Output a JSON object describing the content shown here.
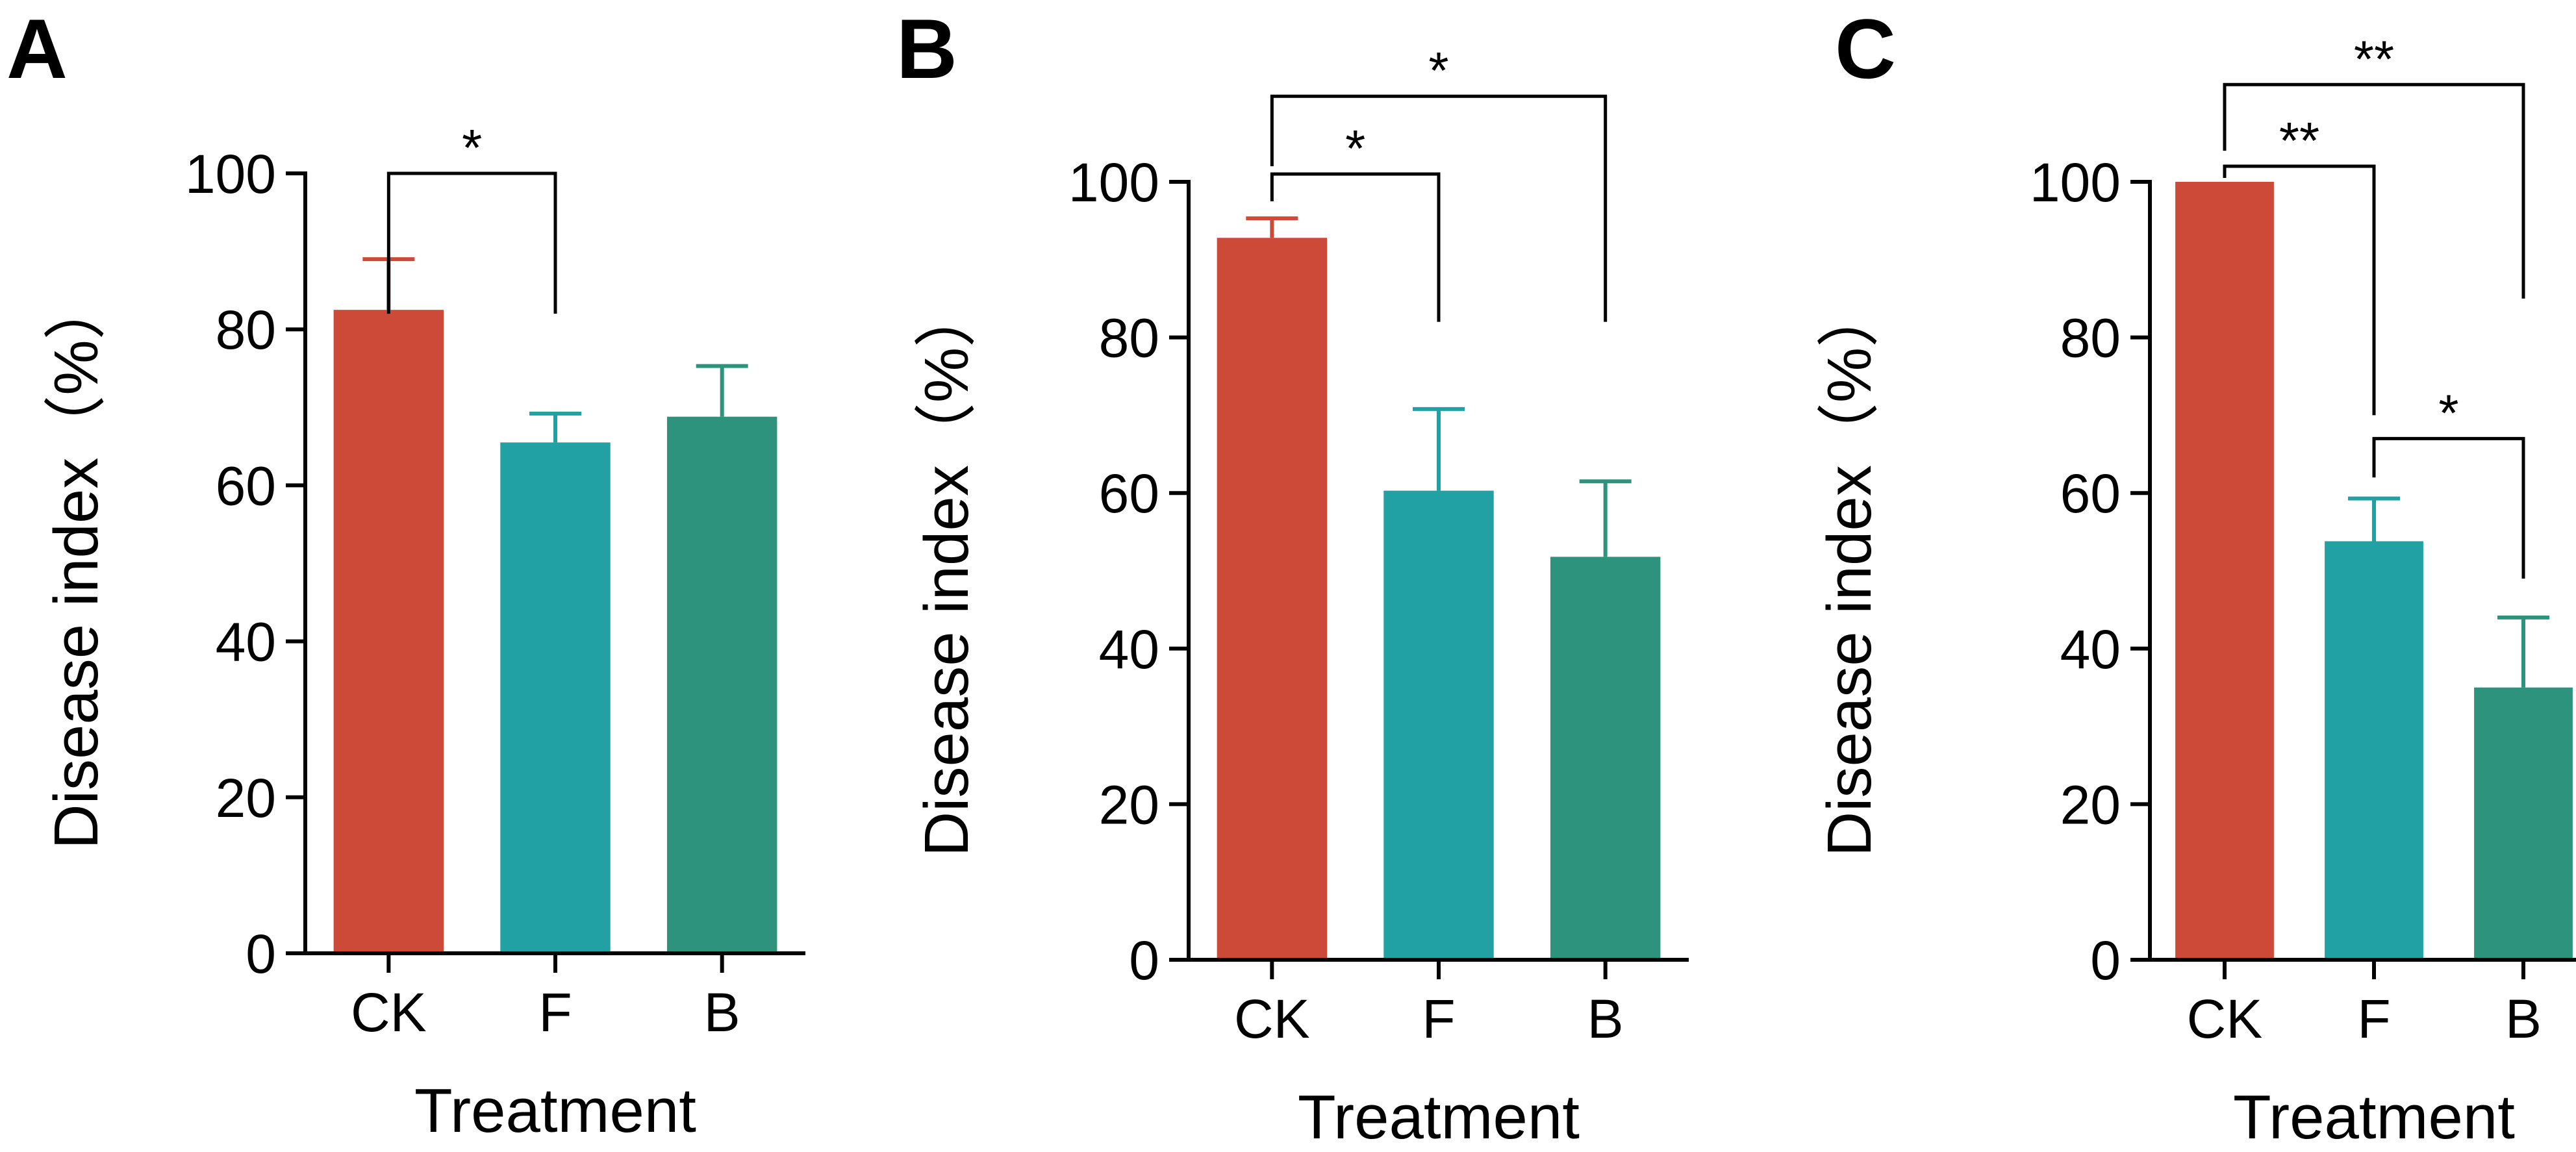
{
  "colors": {
    "CK": "#cc4a37",
    "F": "#22a1a5",
    "B": "#2d937c"
  },
  "chart_data": [
    {
      "type": "bar",
      "panel_label": "A",
      "categories": [
        "CK",
        "F",
        "B"
      ],
      "values": [
        82.5,
        65.5,
        68.8
      ],
      "errors": [
        6.5,
        3.7,
        6.5
      ],
      "xlabel": "Treatment",
      "ylabel": "Disease index（%）",
      "ylim": [
        0,
        100
      ],
      "yticks": [
        "0",
        "20",
        "40",
        "60",
        "80",
        "100"
      ],
      "significance": [
        {
          "from": 0,
          "to": 1,
          "label": "*",
          "level": 100,
          "left_drop": 82,
          "right_drop": 82
        }
      ]
    },
    {
      "type": "bar",
      "panel_label": "B",
      "categories": [
        "CK",
        "F",
        "B"
      ],
      "values": [
        92.8,
        60.3,
        51.8
      ],
      "errors": [
        2.5,
        10.5,
        9.7
      ],
      "xlabel": "Treatment",
      "ylabel": "Disease index（%）",
      "ylim": [
        0,
        100
      ],
      "yticks": [
        "0",
        "20",
        "40",
        "60",
        "80",
        "100"
      ],
      "significance": [
        {
          "from": 0,
          "to": 1,
          "label": "*",
          "level": 101,
          "left_drop": 97.5,
          "right_drop": 82
        },
        {
          "from": 0,
          "to": 2,
          "label": "*",
          "level": 111,
          "left_drop": 102,
          "right_drop": 82
        }
      ]
    },
    {
      "type": "bar",
      "panel_label": "C",
      "categories": [
        "CK",
        "F",
        "B"
      ],
      "values": [
        100,
        53.8,
        35
      ],
      "errors": [
        0,
        5.5,
        9
      ],
      "xlabel": "Treatment",
      "ylabel": "Disease index（%）",
      "ylim": [
        0,
        100
      ],
      "yticks": [
        "0",
        "20",
        "40",
        "60",
        "80",
        "100"
      ],
      "significance": [
        {
          "from": 0,
          "to": 1,
          "label": "**",
          "level": 102,
          "left_drop": 100.5,
          "right_drop": 70
        },
        {
          "from": 0,
          "to": 2,
          "label": "**",
          "level": 112.5,
          "left_drop": 104,
          "right_drop": 85
        },
        {
          "from": 1,
          "to": 2,
          "label": "*",
          "level": 67,
          "left_drop": 62,
          "right_drop": 49
        }
      ]
    }
  ]
}
